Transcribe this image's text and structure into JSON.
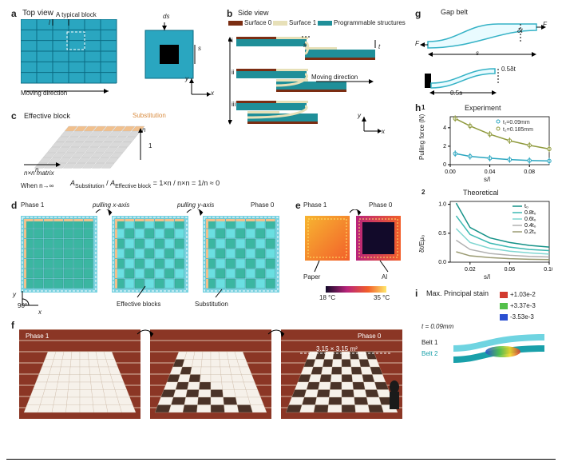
{
  "panel_a": {
    "label": "a",
    "title": "Top view",
    "typical_block": "A typical block",
    "ds": "ds",
    "s": "s",
    "l_char": "l",
    "moving": "Moving direction",
    "axes": {
      "x": "x",
      "y": "y"
    },
    "colors": {
      "grid": "#2aa6c0",
      "hole": "#000000",
      "border": "#0a6a82"
    },
    "grid_n": 6
  },
  "panel_b": {
    "label": "b",
    "title": "Side view",
    "legend": [
      {
        "name": "Surface 0",
        "color": "#7b2d12"
      },
      {
        "name": "Surface 1",
        "color": "#e7e0b8"
      },
      {
        "name": "Programmable structures",
        "color": "#1f8f99"
      }
    ],
    "s": "s",
    "t": "t",
    "moving": "Moving direction",
    "axes": {
      "x": "x",
      "y": "y"
    },
    "rows": [
      "i",
      "ii",
      "iii"
    ]
  },
  "panel_c": {
    "label": "c",
    "title": "Effective block",
    "sub": "Substitution",
    "n_label": "n",
    "matrix": "n×n matrix",
    "when": "When n→∞",
    "frac_left_top": "A Substitution",
    "frac_left_bot": "A Effective block",
    "frac_right": "= 1×n / n×n = 1/n ≈ 0",
    "colors": {
      "grid": "#d9d9d9",
      "sub": "#f1c08d"
    }
  },
  "panel_d": {
    "label": "d",
    "phase1": "Phase 1",
    "phase0": "Phase 0",
    "pullx": "pulling x-axis",
    "pully": "pulling y-axis",
    "ninety": "90°",
    "eff": "Effective blocks",
    "sub": "Substitution",
    "colors": {
      "board1": "#3bb6a1",
      "board2": "#6adfe1",
      "accent": "#f1c08d",
      "edge": "#7ad2e0"
    },
    "axes": {
      "x": "x",
      "y": "y"
    }
  },
  "panel_e": {
    "label": "e",
    "phase1": "Phase 1",
    "phase0": "Phase 0",
    "paper": "Paper",
    "al": "Al",
    "bar_min": "18 °C",
    "bar_max": "35 °C",
    "colors": {
      "hot1": "#f7b531",
      "hot2": "#f25f2a",
      "hot3": "#b9247a",
      "cold": "#120a2a",
      "edge": "#ffe86b"
    }
  },
  "panel_f": {
    "label": "f",
    "phase1": "Phase 1",
    "phase0": "Phase 0",
    "size": "3.15 × 3.15 m²",
    "colors": {
      "brick": "#8b3625",
      "grout": "#d8b9a6",
      "light": "#f6f1ea",
      "dark": "#4a3328"
    },
    "grid_n": 8
  },
  "panel_g": {
    "label": "g",
    "title": "Gap belt",
    "F": "F",
    "s": "s",
    "dt": "δt",
    "half_s": "0.5s",
    "half_dt": "0.5δt",
    "colors": {
      "belt": "#35b2c6",
      "fill": "#e9fbff"
    }
  },
  "panel_h": {
    "label": "h",
    "sub1": "1",
    "sub2": "2",
    "exp_title": "Experiment",
    "theo_title": "Theoretical",
    "x_label": "s/l",
    "y1_label": "Pulling force (N)",
    "y2_label": "δt/Eμ₀",
    "x_ticks": [
      0.0,
      0.04,
      0.08
    ],
    "y1_ticks": [
      0,
      2,
      4
    ],
    "y2_ticks": [
      0.0,
      0.5,
      1.0
    ],
    "x2_ticks": [
      0.02,
      0.06,
      0.1
    ],
    "legend_exp": [
      {
        "name": "t₁=0.09mm",
        "color": "#2aa6c0"
      },
      {
        "name": "t₂=0.185mm",
        "color": "#8f9a3d"
      }
    ],
    "legend_theo": [
      {
        "name": "t₀",
        "color": "#149187"
      },
      {
        "name": "0.8t₀",
        "color": "#3cb9b2"
      },
      {
        "name": "0.6t₀",
        "color": "#7fd6d1"
      },
      {
        "name": "0.4t₀",
        "color": "#b0b0b0"
      },
      {
        "name": "0.2t₀",
        "color": "#9a9a72"
      }
    ],
    "exp_series": [
      {
        "x": [
          0.005,
          0.02,
          0.04,
          0.06,
          0.08,
          0.1
        ],
        "y": [
          1.2,
          0.9,
          0.7,
          0.55,
          0.45,
          0.4
        ],
        "color": "#2aa6c0"
      },
      {
        "x": [
          0.005,
          0.02,
          0.04,
          0.06,
          0.08,
          0.1
        ],
        "y": [
          5.0,
          4.2,
          3.3,
          2.6,
          2.1,
          1.7
        ],
        "color": "#8f9a3d"
      }
    ],
    "theo_series": [
      {
        "x": [
          0.006,
          0.02,
          0.04,
          0.06,
          0.08,
          0.1
        ],
        "y": [
          1.02,
          0.6,
          0.42,
          0.34,
          0.29,
          0.26
        ],
        "color": "#149187"
      },
      {
        "x": [
          0.006,
          0.02,
          0.04,
          0.06,
          0.08,
          0.1
        ],
        "y": [
          0.8,
          0.48,
          0.33,
          0.26,
          0.22,
          0.2
        ],
        "color": "#3cb9b2"
      },
      {
        "x": [
          0.006,
          0.02,
          0.04,
          0.06,
          0.08,
          0.1
        ],
        "y": [
          0.58,
          0.34,
          0.24,
          0.19,
          0.16,
          0.14
        ],
        "color": "#7fd6d1"
      },
      {
        "x": [
          0.006,
          0.02,
          0.04,
          0.06,
          0.08,
          0.1
        ],
        "y": [
          0.38,
          0.22,
          0.15,
          0.12,
          0.1,
          0.09
        ],
        "color": "#b0b0b0"
      },
      {
        "x": [
          0.006,
          0.02,
          0.04,
          0.06,
          0.08,
          0.1
        ],
        "y": [
          0.18,
          0.11,
          0.08,
          0.06,
          0.05,
          0.045
        ],
        "color": "#9a9a72"
      }
    ],
    "bg": "#ffffff",
    "axis_color": "#000000"
  },
  "panel_i": {
    "label": "i",
    "title": "Max. Principal stain",
    "t_line": "t = 0.09mm",
    "belt1": "Belt 1",
    "belt2": "Belt 2",
    "cbar": [
      {
        "v": "+1.03e-2",
        "c": "#d23b2f"
      },
      {
        "v": "+3.37e-3",
        "c": "#53c04a"
      },
      {
        "v": "-3.53e-3",
        "c": "#2a4fd1"
      }
    ],
    "belt_colors": {
      "b1": "#6fd4e1",
      "b2": "#19a0aa",
      "hot": "#f2d523"
    }
  }
}
